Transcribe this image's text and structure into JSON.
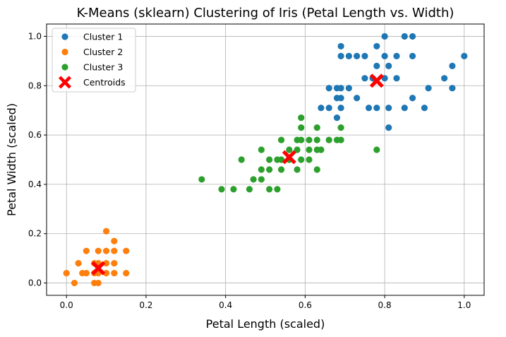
{
  "chart_data": {
    "type": "scatter",
    "title": "K-Means (sklearn) Clustering of Iris (Petal Length vs. Width)",
    "xlabel": "Petal Length (scaled)",
    "ylabel": "Petal Width (scaled)",
    "xlim": [
      -0.05,
      1.05
    ],
    "ylim": [
      -0.05,
      1.05
    ],
    "xticks": [
      "0.0",
      "0.2",
      "0.4",
      "0.6",
      "0.8",
      "1.0"
    ],
    "yticks": [
      "0.0",
      "0.2",
      "0.4",
      "0.6",
      "0.8",
      "1.0"
    ],
    "xtick_values": [
      0.0,
      0.2,
      0.4,
      0.6,
      0.8,
      1.0
    ],
    "ytick_values": [
      0.0,
      0.2,
      0.4,
      0.6,
      0.8,
      1.0
    ],
    "grid": true,
    "legend_position": "top-left",
    "series": [
      {
        "name": "Cluster 1",
        "color": "#1f77b4",
        "marker": "circle",
        "points": [
          [
            0.8,
            1.0
          ],
          [
            0.85,
            1.0
          ],
          [
            0.87,
            1.0
          ],
          [
            0.69,
            0.96
          ],
          [
            0.78,
            0.96
          ],
          [
            0.69,
            0.92
          ],
          [
            0.71,
            0.92
          ],
          [
            0.73,
            0.92
          ],
          [
            0.75,
            0.92
          ],
          [
            0.8,
            0.92
          ],
          [
            0.83,
            0.92
          ],
          [
            0.87,
            0.92
          ],
          [
            1.0,
            0.92
          ],
          [
            0.78,
            0.88
          ],
          [
            0.81,
            0.88
          ],
          [
            0.97,
            0.88
          ],
          [
            0.75,
            0.83
          ],
          [
            0.77,
            0.83
          ],
          [
            0.8,
            0.83
          ],
          [
            0.83,
            0.83
          ],
          [
            0.95,
            0.83
          ],
          [
            0.66,
            0.79
          ],
          [
            0.68,
            0.79
          ],
          [
            0.69,
            0.79
          ],
          [
            0.71,
            0.79
          ],
          [
            0.91,
            0.79
          ],
          [
            0.97,
            0.79
          ],
          [
            0.68,
            0.75
          ],
          [
            0.69,
            0.75
          ],
          [
            0.73,
            0.75
          ],
          [
            0.87,
            0.75
          ],
          [
            0.64,
            0.71
          ],
          [
            0.66,
            0.71
          ],
          [
            0.69,
            0.71
          ],
          [
            0.76,
            0.71
          ],
          [
            0.78,
            0.71
          ],
          [
            0.81,
            0.71
          ],
          [
            0.85,
            0.71
          ],
          [
            0.9,
            0.71
          ],
          [
            0.68,
            0.67
          ],
          [
            0.81,
            0.63
          ]
        ]
      },
      {
        "name": "Cluster 2",
        "color": "#ff7f0e",
        "marker": "circle",
        "points": [
          [
            0.1,
            0.21
          ],
          [
            0.12,
            0.17
          ],
          [
            0.05,
            0.13
          ],
          [
            0.08,
            0.13
          ],
          [
            0.1,
            0.13
          ],
          [
            0.12,
            0.13
          ],
          [
            0.15,
            0.13
          ],
          [
            0.03,
            0.08
          ],
          [
            0.07,
            0.08
          ],
          [
            0.08,
            0.08
          ],
          [
            0.1,
            0.08
          ],
          [
            0.12,
            0.08
          ],
          [
            0.0,
            0.04
          ],
          [
            0.04,
            0.04
          ],
          [
            0.05,
            0.04
          ],
          [
            0.07,
            0.04
          ],
          [
            0.08,
            0.04
          ],
          [
            0.1,
            0.04
          ],
          [
            0.12,
            0.04
          ],
          [
            0.15,
            0.04
          ],
          [
            0.02,
            0.0
          ],
          [
            0.07,
            0.0
          ],
          [
            0.08,
            0.0
          ]
        ]
      },
      {
        "name": "Cluster 3",
        "color": "#2ca02c",
        "marker": "circle",
        "points": [
          [
            0.59,
            0.67
          ],
          [
            0.59,
            0.63
          ],
          [
            0.63,
            0.63
          ],
          [
            0.69,
            0.63
          ],
          [
            0.54,
            0.58
          ],
          [
            0.58,
            0.58
          ],
          [
            0.59,
            0.58
          ],
          [
            0.61,
            0.58
          ],
          [
            0.63,
            0.58
          ],
          [
            0.66,
            0.58
          ],
          [
            0.68,
            0.58
          ],
          [
            0.69,
            0.58
          ],
          [
            0.49,
            0.54
          ],
          [
            0.56,
            0.54
          ],
          [
            0.58,
            0.54
          ],
          [
            0.61,
            0.54
          ],
          [
            0.63,
            0.54
          ],
          [
            0.64,
            0.54
          ],
          [
            0.78,
            0.54
          ],
          [
            0.44,
            0.5
          ],
          [
            0.51,
            0.5
          ],
          [
            0.53,
            0.5
          ],
          [
            0.54,
            0.5
          ],
          [
            0.56,
            0.5
          ],
          [
            0.59,
            0.5
          ],
          [
            0.61,
            0.5
          ],
          [
            0.49,
            0.46
          ],
          [
            0.51,
            0.46
          ],
          [
            0.54,
            0.46
          ],
          [
            0.58,
            0.46
          ],
          [
            0.63,
            0.46
          ],
          [
            0.34,
            0.42
          ],
          [
            0.47,
            0.42
          ],
          [
            0.49,
            0.42
          ],
          [
            0.39,
            0.38
          ],
          [
            0.42,
            0.38
          ],
          [
            0.46,
            0.38
          ],
          [
            0.51,
            0.38
          ],
          [
            0.53,
            0.38
          ]
        ]
      },
      {
        "name": "Centroids",
        "color": "#ff0000",
        "marker": "x",
        "points": [
          [
            0.08,
            0.06
          ],
          [
            0.56,
            0.51
          ],
          [
            0.78,
            0.82
          ]
        ]
      }
    ]
  }
}
